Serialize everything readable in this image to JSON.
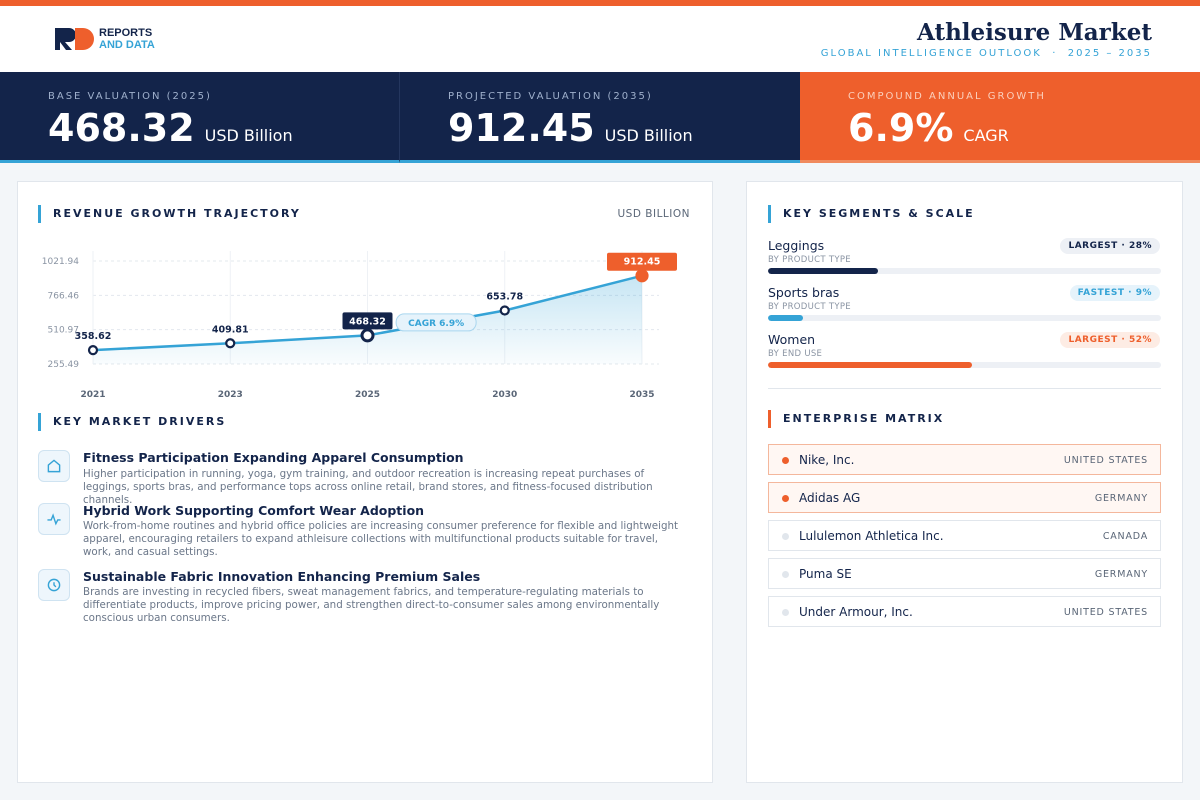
{
  "header": {
    "logo_top": "REPORTS",
    "logo_bottom": "AND DATA",
    "title": "Athleisure Market",
    "subtitle": "GLOBAL INTELLIGENCE OUTLOOK  ·  2025 – 2035"
  },
  "kpis": [
    {
      "label": "BASE VALUATION (2025)",
      "value": "468.32",
      "unit": "USD Billion"
    },
    {
      "label": "PROJECTED VALUATION (2035)",
      "value": "912.45",
      "unit": "USD Billion"
    },
    {
      "label": "COMPOUND ANNUAL GROWTH",
      "value": "6.9%",
      "unit": "CAGR"
    }
  ],
  "chart_data": {
    "type": "line",
    "title": "REVENUE GROWTH TRAJECTORY",
    "y_label": "USD BILLION",
    "categories": [
      "2021",
      "2023",
      "2025",
      "2030",
      "2035"
    ],
    "values": [
      358.62,
      409.81,
      468.32,
      653.78,
      912.45
    ],
    "color": "#35a3d6",
    "ylim": [
      255.49,
      1021.94
    ],
    "yticks": [
      255.49,
      510.97,
      766.46,
      1021.94
    ],
    "grid": true,
    "annotation": "CAGR 6.9%"
  },
  "drivers": {
    "heading": "KEY MARKET DRIVERS",
    "items": [
      {
        "title": "Fitness Participation Expanding Apparel Consumption",
        "text": "Higher participation in running, yoga, gym training, and outdoor recreation is increasing repeat purchases of leggings, sports bras, and performance tops across online retail, brand stores, and fitness-focused distribution channels."
      },
      {
        "title": "Hybrid Work Supporting Comfort Wear Adoption",
        "text": "Work-from-home routines and hybrid office policies are increasing consumer preference for flexible and lightweight apparel, encouraging retailers to expand athleisure collections with multifunctional products suitable for travel, work, and casual settings."
      },
      {
        "title": "Sustainable Fabric Innovation Enhancing Premium Sales",
        "text": "Brands are investing in recycled fibers, sweat management fabrics, and temperature-regulating materials to differentiate products, improve pricing power, and strengthen direct-to-consumer sales among environmentally conscious urban consumers."
      }
    ]
  },
  "segments": {
    "heading": "KEY SEGMENTS & SCALE",
    "items": [
      {
        "name": "Leggings",
        "sub": "BY PRODUCT TYPE",
        "badge": "LARGEST · 28%",
        "share": 28,
        "color": "#13244a"
      },
      {
        "name": "Sports bras",
        "sub": "BY PRODUCT TYPE",
        "badge": "FASTEST · 9%",
        "share": 9,
        "color": "#35a3d6"
      },
      {
        "name": "Women",
        "sub": "BY END USE",
        "badge": "LARGEST · 52%",
        "share": 52,
        "color": "#ee5f2c"
      }
    ]
  },
  "companies": {
    "heading": "ENTERPRISE MATRIX",
    "items": [
      {
        "name": "Nike, Inc.",
        "country": "UNITED STATES",
        "highlighted": true
      },
      {
        "name": "Adidas AG",
        "country": "GERMANY",
        "highlighted": true
      },
      {
        "name": "Lululemon Athletica Inc.",
        "country": "CANADA",
        "highlighted": false
      },
      {
        "name": "Puma SE",
        "country": "GERMANY",
        "highlighted": false
      },
      {
        "name": "Under Armour, Inc.",
        "country": "UNITED STATES",
        "highlighted": false
      }
    ]
  }
}
